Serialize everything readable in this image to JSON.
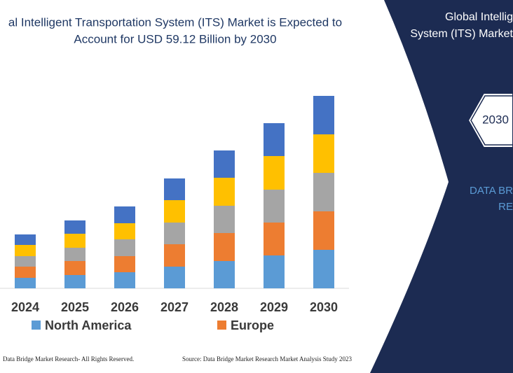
{
  "chart_data": {
    "type": "stacked_bar",
    "title": [
      "al Intelligent Transportation System (ITS) Market is Expected to",
      "Account for USD 59.12 Billion by 2030"
    ],
    "categories": [
      "2024",
      "2025",
      "2026",
      "2027",
      "2028",
      "2029",
      "2030"
    ],
    "series": [
      {
        "name": "North America",
        "color": "#5b9bd5",
        "values": [
          15,
          19,
          23,
          31,
          39,
          47,
          55
        ]
      },
      {
        "name": "Europe",
        "color": "#ed7d31",
        "values": [
          16,
          20,
          23,
          32,
          40,
          47,
          55
        ]
      },
      {
        "color": "#a5a5a5",
        "values": [
          15,
          19,
          24,
          31,
          39,
          47,
          55
        ]
      },
      {
        "color": "#ffc000",
        "values": [
          16,
          20,
          23,
          32,
          40,
          48,
          55
        ]
      },
      {
        "color": "#4472c4",
        "values": [
          15,
          19,
          24,
          31,
          39,
          47,
          55
        ]
      }
    ]
  },
  "panel": {
    "title": [
      "Global Intellig",
      "System (ITS) Market"
    ],
    "badge": "2030",
    "brand": [
      "DATA BR",
      "RE"
    ]
  },
  "footer": {
    "left": "Data Bridge Market Research-  All Rights Reserved.",
    "right": "Source: Data Bridge Market Research  Market Analysis Study 2023"
  }
}
